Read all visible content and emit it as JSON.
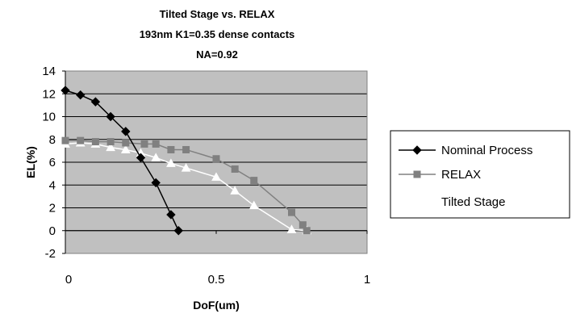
{
  "chart_data": {
    "type": "line",
    "title_lines": [
      "Tilted Stage vs. RELAX",
      "193nm  K1=0.35 dense contacts",
      "NA=0.92"
    ],
    "xlabel": "DoF(um)",
    "ylabel": "EL(%)",
    "xlim": [
      0,
      1
    ],
    "ylim": [
      -2,
      14
    ],
    "x_ticks": [
      "0",
      "0.5",
      "1"
    ],
    "y_ticks": [
      "-2",
      "0",
      "2",
      "4",
      "6",
      "8",
      "10",
      "12",
      "14"
    ],
    "grid": "horizontal",
    "plot_background": "#c0c0c0",
    "legend_position": "right",
    "series": [
      {
        "name": "Nominal Process",
        "color": "#000000",
        "marker": "diamond",
        "x": [
          0,
          0.05,
          0.1,
          0.15,
          0.2,
          0.25,
          0.3,
          0.35,
          0.375
        ],
        "y": [
          12.3,
          11.9,
          11.3,
          10.0,
          8.7,
          6.4,
          4.2,
          1.4,
          0.0
        ]
      },
      {
        "name": "RELAX",
        "color": "#808080",
        "marker": "square",
        "x": [
          0,
          0.05,
          0.1,
          0.15,
          0.2,
          0.262,
          0.3,
          0.35,
          0.4,
          0.5,
          0.562,
          0.625,
          0.75,
          0.787,
          0.8
        ],
        "y": [
          7.9,
          7.9,
          7.8,
          7.8,
          7.7,
          7.6,
          7.6,
          7.1,
          7.1,
          6.3,
          5.4,
          4.4,
          1.6,
          0.5,
          0.0
        ]
      },
      {
        "name": "Tilted Stage",
        "color": "#ffffff",
        "marker": "triangle",
        "x": [
          0,
          0.05,
          0.1,
          0.15,
          0.2,
          0.25,
          0.3,
          0.35,
          0.4,
          0.5,
          0.562,
          0.625,
          0.75,
          0.8
        ],
        "y": [
          7.6,
          7.7,
          7.6,
          7.3,
          7.1,
          6.8,
          6.4,
          5.9,
          5.5,
          4.7,
          3.5,
          2.2,
          0.1,
          0.0
        ]
      }
    ]
  }
}
